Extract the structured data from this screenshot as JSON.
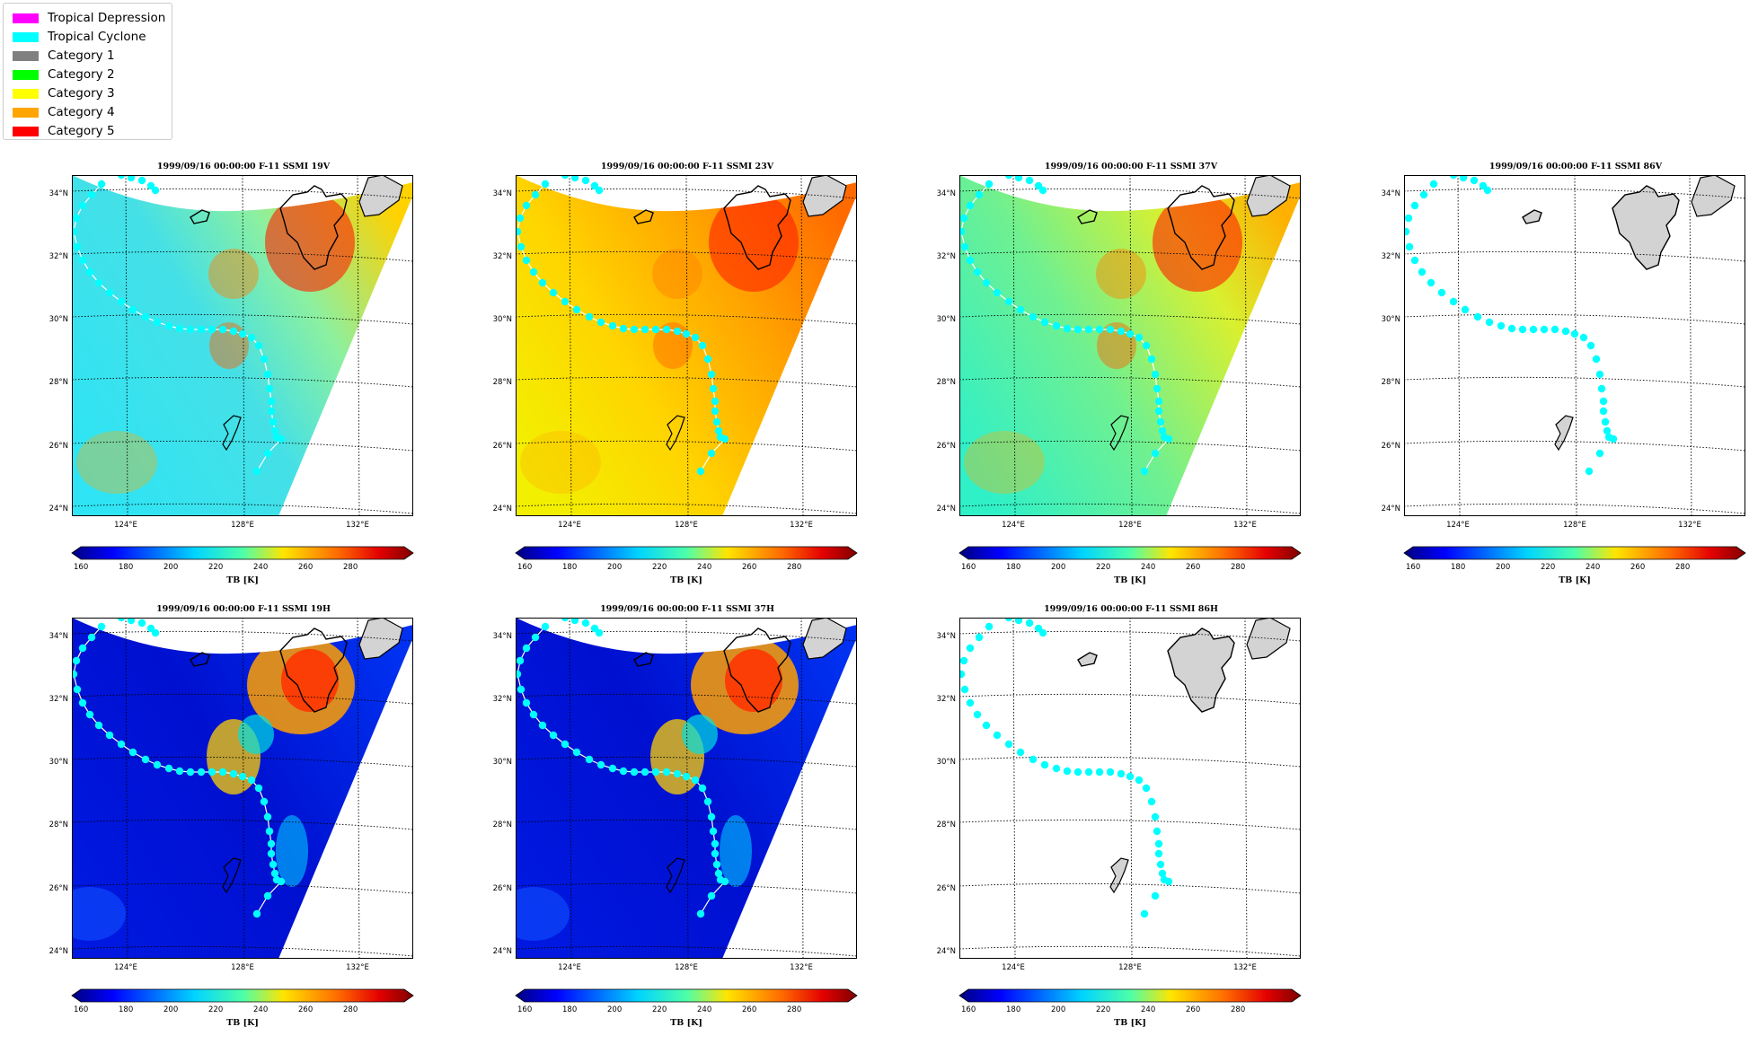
{
  "legend": {
    "items": [
      {
        "label": "Tropical Depression",
        "color": "#ff00ff"
      },
      {
        "label": "Tropical Cyclone",
        "color": "#00ffff"
      },
      {
        "label": "Category 1",
        "color": "#808080"
      },
      {
        "label": "Category 2",
        "color": "#00ff00"
      },
      {
        "label": "Category 3",
        "color": "#ffff00"
      },
      {
        "label": "Category 4",
        "color": "#ffa500"
      },
      {
        "label": "Category 5",
        "color": "#ff0000"
      }
    ]
  },
  "map": {
    "lat_labels": [
      "34°N",
      "32°N",
      "30°N",
      "28°N",
      "26°N",
      "24°N"
    ],
    "lon_labels": [
      "124°E",
      "128°E",
      "132°E"
    ],
    "track_color": "#00ffff",
    "land_color": "#d3d3d3"
  },
  "colorbar": {
    "ticks": [
      "160",
      "180",
      "200",
      "220",
      "240",
      "260",
      "280"
    ],
    "title": "TB [K]"
  },
  "panels": [
    {
      "title": "1999/09/16 00:00:00  F-11 SSMI 19V",
      "scheme": "warm"
    },
    {
      "title": "1999/09/16 00:00:00  F-11 SSMI 23V",
      "scheme": "hot"
    },
    {
      "title": "1999/09/16 00:00:00  F-11 SSMI 37V",
      "scheme": "mid"
    },
    {
      "title": "1999/09/16 00:00:00  F-11 SSMI 86V",
      "scheme": "none"
    },
    {
      "title": "1999/09/16 00:00:00  F-11 SSMI 19H",
      "scheme": "cold"
    },
    {
      "title": "1999/09/16 00:00:00  F-11 SSMI 37H",
      "scheme": "cold"
    },
    {
      "title": "1999/09/16 00:00:00  F-11 SSMI 86H",
      "scheme": "none"
    }
  ]
}
